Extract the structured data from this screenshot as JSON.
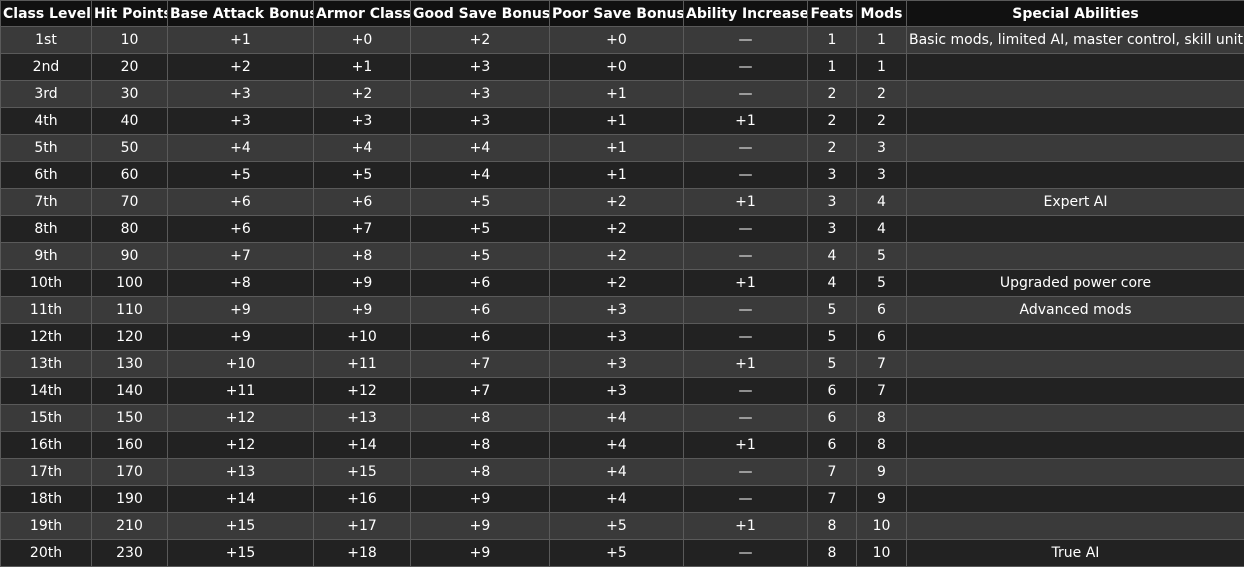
{
  "columns": [
    "Class Level",
    "Hit Points",
    "Base Attack Bonus",
    "Armor Class",
    "Good Save Bonus",
    "Poor Save Bonus",
    "Ability Increase",
    "Feats",
    "Mods",
    "Special Abilities"
  ],
  "rows": [
    [
      "1st",
      "10",
      "+1",
      "+0",
      "+2",
      "+0",
      "—",
      "1",
      "1",
      "Basic mods, limited AI, master control, skill unit"
    ],
    [
      "2nd",
      "20",
      "+2",
      "+1",
      "+3",
      "+0",
      "—",
      "1",
      "1",
      ""
    ],
    [
      "3rd",
      "30",
      "+3",
      "+2",
      "+3",
      "+1",
      "—",
      "2",
      "2",
      ""
    ],
    [
      "4th",
      "40",
      "+3",
      "+3",
      "+3",
      "+1",
      "+1",
      "2",
      "2",
      ""
    ],
    [
      "5th",
      "50",
      "+4",
      "+4",
      "+4",
      "+1",
      "—",
      "2",
      "3",
      ""
    ],
    [
      "6th",
      "60",
      "+5",
      "+5",
      "+4",
      "+1",
      "—",
      "3",
      "3",
      ""
    ],
    [
      "7th",
      "70",
      "+6",
      "+6",
      "+5",
      "+2",
      "+1",
      "3",
      "4",
      "Expert AI"
    ],
    [
      "8th",
      "80",
      "+6",
      "+7",
      "+5",
      "+2",
      "—",
      "3",
      "4",
      ""
    ],
    [
      "9th",
      "90",
      "+7",
      "+8",
      "+5",
      "+2",
      "—",
      "4",
      "5",
      ""
    ],
    [
      "10th",
      "100",
      "+8",
      "+9",
      "+6",
      "+2",
      "+1",
      "4",
      "5",
      "Upgraded power core"
    ],
    [
      "11th",
      "110",
      "+9",
      "+9",
      "+6",
      "+3",
      "—",
      "5",
      "6",
      "Advanced mods"
    ],
    [
      "12th",
      "120",
      "+9",
      "+10",
      "+6",
      "+3",
      "—",
      "5",
      "6",
      ""
    ],
    [
      "13th",
      "130",
      "+10",
      "+11",
      "+7",
      "+3",
      "+1",
      "5",
      "7",
      ""
    ],
    [
      "14th",
      "140",
      "+11",
      "+12",
      "+7",
      "+3",
      "—",
      "6",
      "7",
      ""
    ],
    [
      "15th",
      "150",
      "+12",
      "+13",
      "+8",
      "+4",
      "—",
      "6",
      "8",
      ""
    ],
    [
      "16th",
      "160",
      "+12",
      "+14",
      "+8",
      "+4",
      "+1",
      "6",
      "8",
      ""
    ],
    [
      "17th",
      "170",
      "+13",
      "+15",
      "+8",
      "+4",
      "—",
      "7",
      "9",
      ""
    ],
    [
      "18th",
      "190",
      "+14",
      "+16",
      "+9",
      "+4",
      "—",
      "7",
      "9",
      ""
    ],
    [
      "19th",
      "210",
      "+15",
      "+17",
      "+9",
      "+5",
      "+1",
      "8",
      "10",
      ""
    ],
    [
      "20th",
      "230",
      "+15",
      "+18",
      "+9",
      "+5",
      "—",
      "8",
      "10",
      "True AI"
    ]
  ]
}
